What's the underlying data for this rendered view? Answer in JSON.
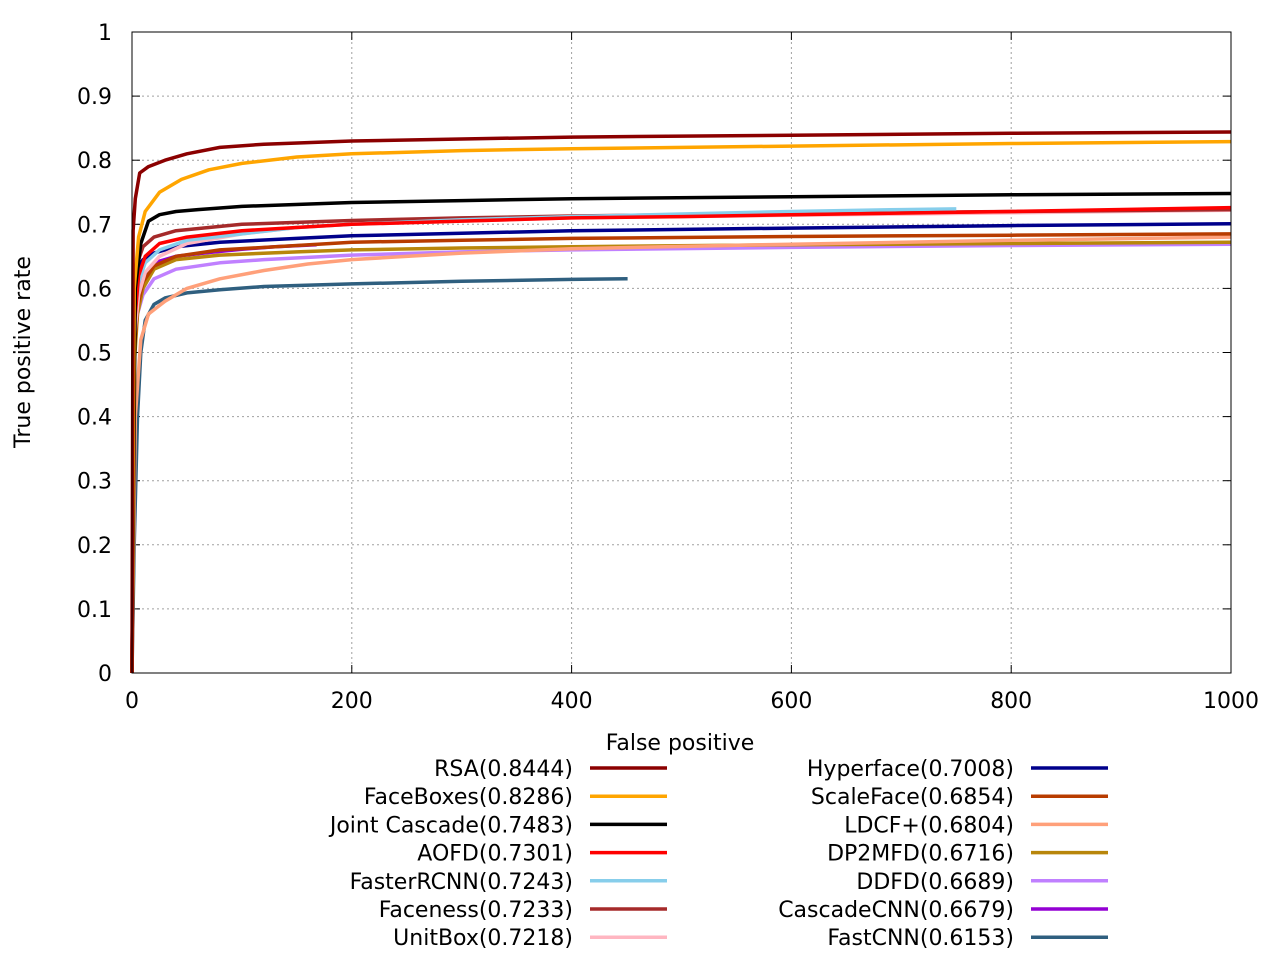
{
  "chart_data": {
    "type": "line",
    "title": "",
    "xlabel": "False positive",
    "ylabel": "True positive rate",
    "xlim": [
      0,
      1000
    ],
    "ylim": [
      0,
      1
    ],
    "grid": true,
    "legend_position": "bottom-two-columns",
    "x_ticks": [
      {
        "value": 0,
        "label": "0"
      },
      {
        "value": 200,
        "label": "200"
      },
      {
        "value": 400,
        "label": "400"
      },
      {
        "value": 600,
        "label": "600"
      },
      {
        "value": 800,
        "label": "800"
      },
      {
        "value": 1000,
        "label": "1000"
      }
    ],
    "y_ticks": [
      {
        "value": 0,
        "label": "0"
      },
      {
        "value": 0.1,
        "label": "0.1"
      },
      {
        "value": 0.2,
        "label": "0.2"
      },
      {
        "value": 0.3,
        "label": "0.3"
      },
      {
        "value": 0.4,
        "label": "0.4"
      },
      {
        "value": 0.5,
        "label": "0.5"
      },
      {
        "value": 0.6,
        "label": "0.6"
      },
      {
        "value": 0.7,
        "label": "0.7"
      },
      {
        "value": 0.8,
        "label": "0.8"
      },
      {
        "value": 0.9,
        "label": "0.9"
      },
      {
        "value": 1,
        "label": "1"
      }
    ],
    "series": [
      {
        "name": "RSA(0.8444)",
        "color": "#8b0000",
        "x": [
          0,
          1,
          3,
          7,
          15,
          30,
          50,
          80,
          120,
          200,
          300,
          400,
          600,
          800,
          1000
        ],
        "y": [
          0.0,
          0.69,
          0.74,
          0.78,
          0.79,
          0.8,
          0.81,
          0.82,
          0.825,
          0.83,
          0.833,
          0.836,
          0.839,
          0.842,
          0.844
        ]
      },
      {
        "name": "FaceBoxes(0.8286)",
        "color": "#ffa500",
        "x": [
          0,
          2,
          6,
          12,
          25,
          45,
          70,
          100,
          150,
          200,
          300,
          400,
          600,
          800,
          1000
        ],
        "y": [
          0.0,
          0.6,
          0.68,
          0.72,
          0.75,
          0.77,
          0.785,
          0.795,
          0.805,
          0.81,
          0.815,
          0.818,
          0.822,
          0.826,
          0.829
        ]
      },
      {
        "name": "Joint Cascade(0.7483)",
        "color": "#000000",
        "x": [
          0,
          3,
          8,
          15,
          25,
          40,
          60,
          100,
          200,
          300,
          400,
          600,
          800,
          1000
        ],
        "y": [
          0.0,
          0.6,
          0.67,
          0.705,
          0.715,
          0.72,
          0.723,
          0.728,
          0.734,
          0.737,
          0.74,
          0.743,
          0.746,
          0.748
        ]
      },
      {
        "name": "AOFD(0.7301)",
        "color": "#ff0000",
        "x": [
          0,
          2,
          6,
          12,
          25,
          50,
          100,
          200,
          300,
          400,
          500,
          600,
          800,
          1000
        ],
        "y": [
          0.0,
          0.54,
          0.62,
          0.65,
          0.67,
          0.68,
          0.69,
          0.7,
          0.705,
          0.71,
          0.712,
          0.715,
          0.72,
          0.726
        ]
      },
      {
        "name": "FasterRCNN(0.7243)",
        "color": "#87ceeb",
        "x": [
          0,
          2,
          6,
          12,
          25,
          50,
          100,
          150,
          200,
          300,
          400,
          500,
          600,
          700,
          750
        ],
        "y": [
          0.0,
          0.55,
          0.61,
          0.64,
          0.66,
          0.675,
          0.685,
          0.695,
          0.7,
          0.707,
          0.712,
          0.716,
          0.72,
          0.723,
          0.724
        ]
      },
      {
        "name": "Faceness(0.7233)",
        "color": "#a52a2a",
        "x": [
          0,
          2,
          5,
          10,
          20,
          40,
          70,
          100,
          150,
          200,
          300,
          400,
          600,
          800,
          1000
        ],
        "y": [
          0.0,
          0.58,
          0.64,
          0.665,
          0.68,
          0.69,
          0.695,
          0.7,
          0.703,
          0.706,
          0.71,
          0.713,
          0.717,
          0.72,
          0.723
        ]
      },
      {
        "name": "UnitBox(0.7218)",
        "color": "#ffb6c1",
        "x": [
          0,
          2,
          6,
          12,
          25,
          50,
          100,
          150,
          200,
          300,
          400,
          600,
          800,
          1000
        ],
        "y": [
          0.0,
          0.52,
          0.59,
          0.625,
          0.65,
          0.67,
          0.685,
          0.695,
          0.7,
          0.705,
          0.71,
          0.714,
          0.718,
          0.722
        ]
      },
      {
        "name": "Hyperface(0.7008)",
        "color": "#00008b",
        "x": [
          0,
          2,
          5,
          10,
          20,
          40,
          80,
          150,
          200,
          300,
          400,
          600,
          800,
          1000
        ],
        "y": [
          0.0,
          0.6,
          0.63,
          0.645,
          0.655,
          0.665,
          0.672,
          0.678,
          0.682,
          0.686,
          0.69,
          0.694,
          0.698,
          0.701
        ]
      },
      {
        "name": "ScaleFace(0.6854)",
        "color": "#b83c00",
        "x": [
          0,
          2,
          5,
          10,
          20,
          40,
          80,
          150,
          200,
          300,
          400,
          600,
          800,
          1000
        ],
        "y": [
          0.0,
          0.5,
          0.57,
          0.61,
          0.635,
          0.65,
          0.66,
          0.667,
          0.672,
          0.675,
          0.678,
          0.681,
          0.683,
          0.685
        ]
      },
      {
        "name": "LDCF+(0.6804)",
        "color": "#ffa07a",
        "x": [
          0,
          3,
          8,
          15,
          30,
          50,
          80,
          120,
          160,
          200,
          300,
          400,
          600,
          800,
          1000
        ],
        "y": [
          0.0,
          0.4,
          0.52,
          0.56,
          0.58,
          0.6,
          0.615,
          0.628,
          0.638,
          0.645,
          0.655,
          0.662,
          0.669,
          0.675,
          0.68
        ]
      },
      {
        "name": "DP2MFD(0.6716)",
        "color": "#b8860b",
        "x": [
          0,
          2,
          5,
          10,
          20,
          40,
          80,
          150,
          200,
          300,
          400,
          600,
          800,
          1000
        ],
        "y": [
          0.0,
          0.48,
          0.56,
          0.6,
          0.63,
          0.645,
          0.652,
          0.657,
          0.66,
          0.663,
          0.665,
          0.668,
          0.67,
          0.672
        ]
      },
      {
        "name": "DDFD(0.6689)",
        "color": "#c080ff",
        "x": [
          0,
          2,
          5,
          10,
          20,
          40,
          80,
          120,
          200,
          300,
          400,
          600,
          800,
          1000
        ],
        "y": [
          0.0,
          0.5,
          0.56,
          0.59,
          0.615,
          0.63,
          0.64,
          0.645,
          0.652,
          0.657,
          0.66,
          0.664,
          0.667,
          0.669
        ]
      },
      {
        "name": "CascadeCNN(0.6679)",
        "color": "#9400d3",
        "x": [
          0,
          2,
          5,
          10,
          20,
          40,
          70,
          100,
          130,
          168
        ],
        "y": [
          0.0,
          0.53,
          0.59,
          0.62,
          0.64,
          0.65,
          0.656,
          0.661,
          0.665,
          0.668
        ]
      },
      {
        "name": "FastCNN(0.6153)",
        "color": "#2f5f7f",
        "x": [
          0,
          2,
          5,
          8,
          12,
          20,
          30,
          50,
          80,
          120,
          200,
          300,
          400,
          451
        ],
        "y": [
          0.0,
          0.2,
          0.4,
          0.5,
          0.55,
          0.575,
          0.585,
          0.593,
          0.598,
          0.603,
          0.607,
          0.611,
          0.614,
          0.615
        ]
      }
    ]
  }
}
